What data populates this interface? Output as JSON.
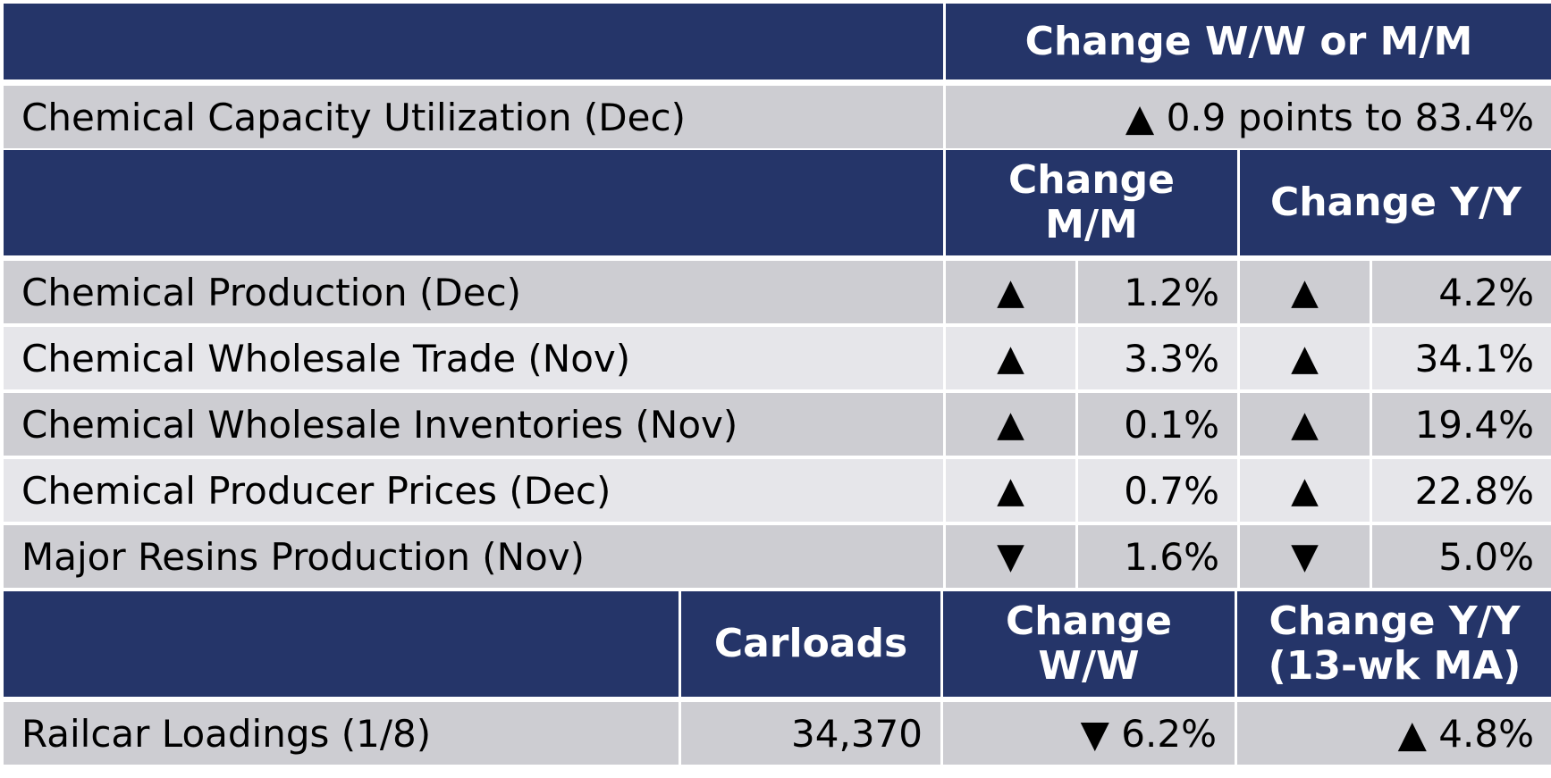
{
  "header": {
    "change_ww_mm": "Change W/W or M/M"
  },
  "capacity": {
    "label": "Chemical Capacity Utilization (Dec)",
    "value": "▲ 0.9 points to 83.4%"
  },
  "section2": {
    "col_mm_line1": "Change",
    "col_mm_line2": "M/M",
    "col_yy": "Change Y/Y"
  },
  "rows": [
    {
      "label": "Chemical Production (Dec)",
      "mm_dir": "▲",
      "mm": "1.2%",
      "yy_dir": "▲",
      "yy": "4.2%"
    },
    {
      "label": "Chemical Wholesale Trade (Nov)",
      "mm_dir": "▲",
      "mm": "3.3%",
      "yy_dir": "▲",
      "yy": "34.1%"
    },
    {
      "label": "Chemical Wholesale Inventories (Nov)",
      "mm_dir": "▲",
      "mm": "0.1%",
      "yy_dir": "▲",
      "yy": "19.4%"
    },
    {
      "label": "Chemical Producer Prices (Dec)",
      "mm_dir": "▲",
      "mm": "0.7%",
      "yy_dir": "▲",
      "yy": "22.8%"
    },
    {
      "label": "Major Resins Production (Nov)",
      "mm_dir": "▼",
      "mm": "1.6%",
      "yy_dir": "▼",
      "yy": "5.0%"
    }
  ],
  "section3": {
    "col_carloads": "Carloads",
    "col_ww_line1": "Change",
    "col_ww_line2": "W/W",
    "col_yy_line1": "Change Y/Y",
    "col_yy_line2": "(13-wk MA)"
  },
  "railcar": {
    "label": "Railcar Loadings (1/8)",
    "carloads": "34,370",
    "ww": "▼ 6.2%",
    "yy": "▲ 4.8%"
  }
}
